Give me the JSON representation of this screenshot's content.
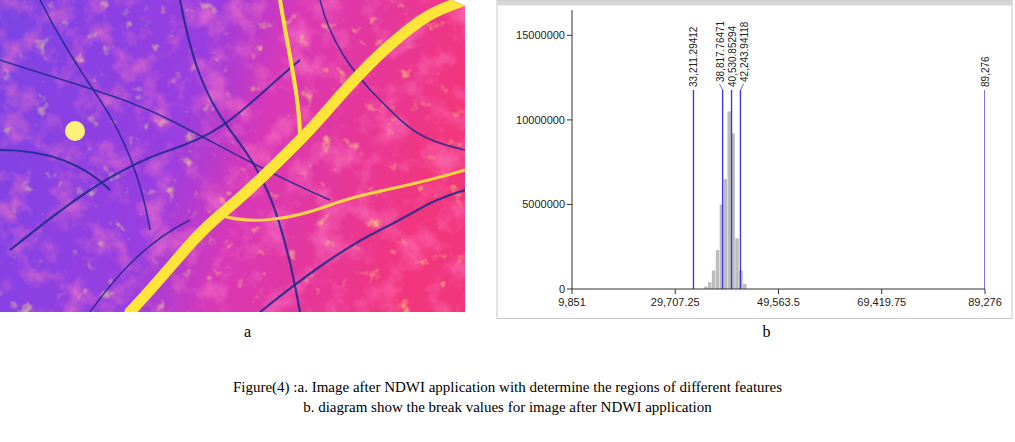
{
  "figure": {
    "panel_labels": [
      "a",
      "b"
    ],
    "caption": [
      "Figure(4) :a. Image after NDWI application with determine the regions of different features",
      "b. diagram show the break values for image after NDWI application"
    ]
  },
  "chart_data": {
    "type": "histogram",
    "bins": [
      35250,
      36000,
      36750,
      37500,
      38250,
      39000,
      39750,
      40500,
      41250,
      42000,
      42750,
      43500
    ],
    "values": [
      150000,
      400000,
      1100000,
      2300000,
      5000000,
      6500000,
      10500000,
      9200000,
      3000000,
      1100000,
      300000
    ],
    "color": "#bdbdbd",
    "xlim": [
      9851,
      89276
    ],
    "xticks": [
      {
        "value": 9851,
        "label": "9,851"
      },
      {
        "value": 29707.25,
        "label": "29,707.25"
      },
      {
        "value": 49563.5,
        "label": "49,563.5"
      },
      {
        "value": 69419.75,
        "label": "69,419.75"
      },
      {
        "value": 89276,
        "label": "89,276"
      }
    ],
    "ylim": [
      0,
      16500000
    ],
    "yticks": [
      0,
      5000000,
      10000000,
      15000000
    ],
    "breaks": [
      {
        "value": 33211.29412,
        "label": "33,211.29412"
      },
      {
        "value": 38817.76471,
        "label": "38,817.76471"
      },
      {
        "value": 40530.85294,
        "label": "40,530.85294"
      },
      {
        "value": 42243.94118,
        "label": "42,243.94118"
      },
      {
        "value": 89276,
        "label": "89,276"
      }
    ],
    "grid": false
  }
}
